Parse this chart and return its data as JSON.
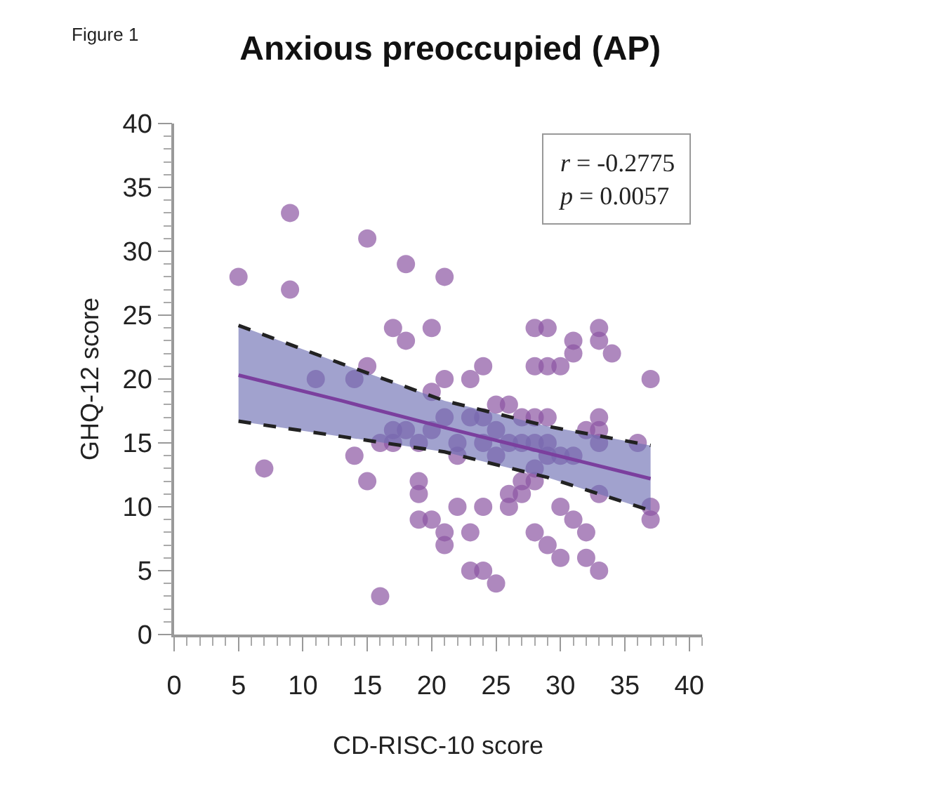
{
  "chart_data": {
    "type": "scatter",
    "title": "Anxious preoccupied (AP)",
    "xlabel": "CD-RISC-10 score",
    "ylabel": "GHQ-12 score",
    "annotations": [
      "Figure 1",
      "r = -0.2775",
      "p = 0.0057"
    ],
    "xlim": [
      0,
      41
    ],
    "xticks": [
      0,
      5,
      10,
      15,
      20,
      25,
      30,
      35,
      40
    ],
    "ylim": [
      0,
      40
    ],
    "yticks": [
      0,
      5,
      10,
      15,
      20,
      25,
      30,
      35,
      40
    ],
    "legend": false,
    "series": [
      {
        "marker": "circle",
        "color": "#8b55a3",
        "x": [
          5,
          7,
          9,
          9,
          11,
          14,
          14,
          15,
          15,
          15,
          16,
          16,
          17,
          17,
          17,
          18,
          18,
          18,
          19,
          19,
          19,
          19,
          20,
          20,
          20,
          20,
          21,
          21,
          21,
          21,
          21,
          22,
          22,
          22,
          23,
          23,
          23,
          23,
          24,
          24,
          24,
          24,
          24,
          25,
          25,
          25,
          25,
          26,
          26,
          26,
          26,
          27,
          27,
          27,
          27,
          28,
          28,
          28,
          28,
          28,
          28,
          28,
          29,
          29,
          29,
          29,
          29,
          29,
          30,
          30,
          30,
          30,
          31,
          31,
          31,
          31,
          32,
          32,
          32,
          33,
          33,
          33,
          33,
          33,
          33,
          33,
          34,
          36,
          37,
          37,
          37
        ],
        "values": [
          28,
          13,
          33,
          27,
          20,
          14,
          20,
          31,
          12,
          21,
          3,
          15,
          24,
          16,
          15,
          29,
          23,
          16,
          12,
          11,
          9,
          15,
          24,
          19,
          16,
          9,
          28,
          20,
          17,
          8,
          7,
          15,
          14,
          10,
          20,
          8,
          5,
          17,
          21,
          17,
          5,
          10,
          15,
          18,
          16,
          4,
          14,
          18,
          15,
          10,
          11,
          17,
          15,
          12,
          11,
          24,
          21,
          17,
          15,
          13,
          12,
          8,
          24,
          21,
          17,
          14,
          15,
          7,
          21,
          14,
          10,
          6,
          23,
          22,
          14,
          9,
          16,
          8,
          6,
          24,
          23,
          17,
          16,
          15,
          11,
          5,
          22,
          15,
          20,
          10,
          9
        ]
      },
      {
        "type": "line",
        "color": "#7b3f9e",
        "line_style": "solid",
        "x": [
          5,
          13,
          21,
          29,
          37
        ],
        "values": [
          20.3,
          18.3,
          16.2,
          14.2,
          12.2
        ],
        "lower": [
          16.7,
          15.5,
          14.3,
          12.3,
          9.7
        ],
        "upper": [
          24.2,
          21.2,
          18.3,
          16.3,
          14.8
        ]
      },
      {
        "type": "line",
        "color": "#222222",
        "line_style": "dashed",
        "x": [
          5,
          13,
          21,
          29,
          37
        ],
        "values": [
          24.2,
          21.2,
          18.3,
          16.3,
          14.8
        ]
      },
      {
        "type": "line",
        "color": "#222222",
        "line_style": "dashed",
        "x": [
          5,
          13,
          21,
          29,
          37
        ],
        "values": [
          16.7,
          15.5,
          14.3,
          12.3,
          9.7
        ]
      }
    ]
  }
}
